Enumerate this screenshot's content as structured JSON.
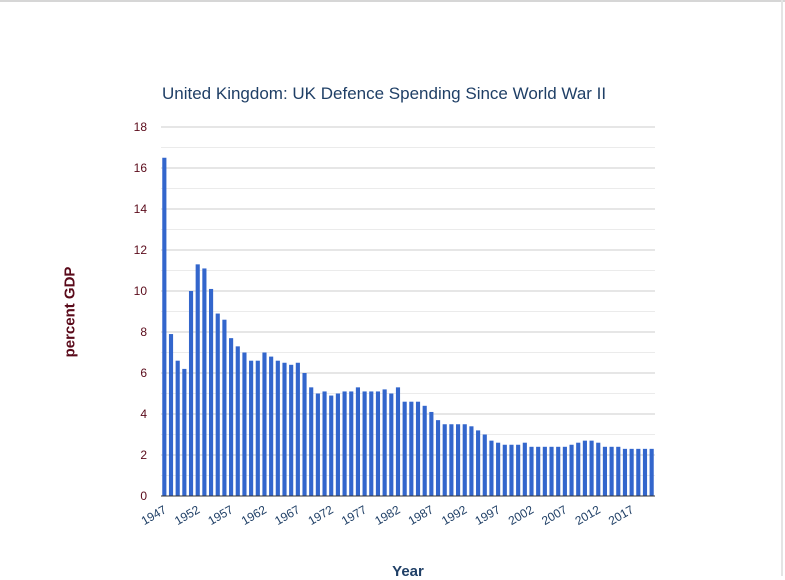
{
  "chart_data": {
    "type": "bar",
    "title": "United Kingdom: UK Defence Spending Since World War II",
    "xlabel": "Year",
    "ylabel": "percent GDP",
    "ylim": [
      0,
      18
    ],
    "yticks": [
      0,
      2,
      4,
      6,
      8,
      10,
      12,
      14,
      16,
      18
    ],
    "xticks": [
      "1947",
      "1952",
      "1957",
      "1962",
      "1967",
      "1972",
      "1977",
      "1982",
      "1987",
      "1992",
      "1997",
      "2002",
      "2007",
      "2012",
      "2017"
    ],
    "grid": true,
    "legend": "none",
    "bar_color": "#3366cc",
    "categories": [
      "1947",
      "1948",
      "1949",
      "1950",
      "1951",
      "1952",
      "1953",
      "1954",
      "1955",
      "1956",
      "1957",
      "1958",
      "1959",
      "1960",
      "1961",
      "1962",
      "1963",
      "1964",
      "1965",
      "1966",
      "1967",
      "1968",
      "1969",
      "1970",
      "1971",
      "1972",
      "1973",
      "1974",
      "1975",
      "1976",
      "1977",
      "1978",
      "1979",
      "1980",
      "1981",
      "1982",
      "1983",
      "1984",
      "1985",
      "1986",
      "1987",
      "1988",
      "1989",
      "1990",
      "1991",
      "1992",
      "1993",
      "1994",
      "1995",
      "1996",
      "1997",
      "1998",
      "1999",
      "2000",
      "2001",
      "2002",
      "2003",
      "2004",
      "2005",
      "2006",
      "2007",
      "2008",
      "2009",
      "2010",
      "2011",
      "2012",
      "2013",
      "2014",
      "2015",
      "2016",
      "2017",
      "2018",
      "2019",
      "2020"
    ],
    "values": [
      16.5,
      7.9,
      6.6,
      6.2,
      10.0,
      11.3,
      11.1,
      10.1,
      8.9,
      8.6,
      7.7,
      7.3,
      7.0,
      6.6,
      6.6,
      7.0,
      6.8,
      6.6,
      6.5,
      6.4,
      6.5,
      6.0,
      5.3,
      5.0,
      5.1,
      4.9,
      5.0,
      5.1,
      5.1,
      5.3,
      5.1,
      5.1,
      5.1,
      5.2,
      5.0,
      5.3,
      4.6,
      4.6,
      4.6,
      4.4,
      4.1,
      3.7,
      3.5,
      3.5,
      3.5,
      3.5,
      3.4,
      3.2,
      3.0,
      2.7,
      2.6,
      2.5,
      2.5,
      2.5,
      2.6,
      2.4,
      2.4,
      2.4,
      2.4,
      2.4,
      2.4,
      2.5,
      2.6,
      2.7,
      2.7,
      2.6,
      2.4,
      2.4,
      2.4,
      2.3,
      2.3,
      2.3,
      2.3,
      2.3
    ]
  }
}
